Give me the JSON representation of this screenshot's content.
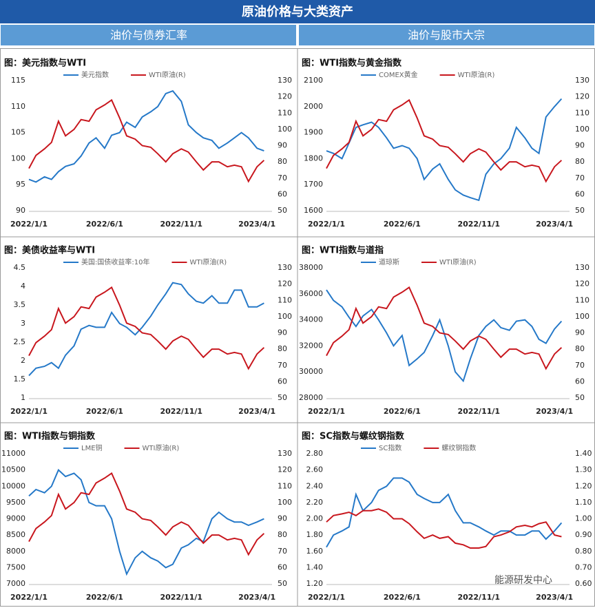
{
  "header": {
    "title": "原油价格与大类资产"
  },
  "sections": [
    "油价与债券汇率",
    "油价与股市大宗"
  ],
  "watermark": "能源研发中心",
  "chart_data": [
    {
      "type": "line",
      "title": "图：美元指数与WTI",
      "x": [
        "2022/1/1",
        "2022/1/15",
        "2022/2/1",
        "2022/2/15",
        "2022/3/1",
        "2022/3/15",
        "2022/4/1",
        "2022/4/15",
        "2022/5/1",
        "2022/5/15",
        "2022/6/1",
        "2022/6/15",
        "2022/7/1",
        "2022/7/15",
        "2022/8/1",
        "2022/8/15",
        "2022/9/1",
        "2022/9/15",
        "2022/10/1",
        "2022/10/15",
        "2022/11/1",
        "2022/11/15",
        "2022/12/1",
        "2022/12/15",
        "2023/1/1",
        "2023/1/15",
        "2023/2/1",
        "2023/2/15",
        "2023/3/1",
        "2023/3/15",
        "2023/4/1",
        "2023/4/15"
      ],
      "xlim": [
        "2022/1/1",
        "2023/5/1"
      ],
      "xticks": [
        "2022/1/1",
        "2022/6/1",
        "2022/11/1",
        "2023/4/1"
      ],
      "ylim": [
        90,
        115
      ],
      "yticks": [
        90,
        95,
        100,
        105,
        110,
        115
      ],
      "y2lim": [
        50,
        130
      ],
      "y2ticks": [
        50,
        60,
        70,
        80,
        90,
        100,
        110,
        120,
        130
      ],
      "series": [
        {
          "name": "美元指数",
          "color": "#2478c8",
          "values": [
            96,
            95.5,
            96.5,
            96,
            97.5,
            98.5,
            99,
            100.5,
            103,
            104,
            102,
            104.5,
            105,
            107,
            106,
            108,
            109,
            110,
            112.5,
            113,
            111,
            106.5,
            105,
            104,
            103.5,
            102,
            103,
            104,
            105,
            104,
            102,
            101.5
          ]
        },
        {
          "name": "WTI原油(R)",
          "color": "#c8161d",
          "axis": "y2",
          "values": [
            76,
            84,
            88,
            92,
            105,
            96,
            100,
            106,
            105,
            112,
            115,
            118,
            107,
            96,
            94,
            90,
            89,
            85,
            80,
            85,
            88,
            86,
            80,
            75,
            80,
            80,
            77,
            78,
            77,
            68,
            77,
            81
          ]
        }
      ]
    },
    {
      "type": "line",
      "title": "图：WTI指数与黄金指数",
      "x": [
        "2022/1/1",
        "2022/1/15",
        "2022/2/1",
        "2022/2/15",
        "2022/3/1",
        "2022/3/15",
        "2022/4/1",
        "2022/4/15",
        "2022/5/1",
        "2022/5/15",
        "2022/6/1",
        "2022/6/15",
        "2022/7/1",
        "2022/7/15",
        "2022/8/1",
        "2022/8/15",
        "2022/9/1",
        "2022/9/15",
        "2022/10/1",
        "2022/10/15",
        "2022/11/1",
        "2022/11/15",
        "2022/12/1",
        "2022/12/15",
        "2023/1/1",
        "2023/1/15",
        "2023/2/1",
        "2023/2/15",
        "2023/3/1",
        "2023/3/15",
        "2023/4/1",
        "2023/4/15"
      ],
      "xlim": [
        "2022/1/1",
        "2023/5/1"
      ],
      "xticks": [
        "2022/1/1",
        "2022/6/1",
        "2022/11/1",
        "2023/4/1"
      ],
      "ylim": [
        1600,
        2100
      ],
      "yticks": [
        1600,
        1700,
        1800,
        1900,
        2000,
        2100
      ],
      "y2lim": [
        50,
        130
      ],
      "y2ticks": [
        50,
        60,
        70,
        80,
        90,
        100,
        110,
        120,
        130
      ],
      "series": [
        {
          "name": "COMEX黄金",
          "color": "#2478c8",
          "values": [
            1830,
            1820,
            1800,
            1860,
            1920,
            1930,
            1940,
            1920,
            1880,
            1840,
            1850,
            1840,
            1800,
            1720,
            1760,
            1780,
            1720,
            1680,
            1660,
            1650,
            1640,
            1740,
            1780,
            1800,
            1840,
            1920,
            1880,
            1840,
            1820,
            1960,
            2000,
            2030
          ]
        },
        {
          "name": "WTI原油(R)",
          "color": "#c8161d",
          "axis": "y2",
          "values": [
            76,
            84,
            88,
            92,
            105,
            96,
            100,
            106,
            105,
            112,
            115,
            118,
            107,
            96,
            94,
            90,
            89,
            85,
            80,
            85,
            88,
            86,
            80,
            75,
            80,
            80,
            77,
            78,
            77,
            68,
            77,
            81
          ]
        }
      ]
    },
    {
      "type": "line",
      "title": "图：美债收益率与WTI",
      "x": [
        "2022/1/1",
        "2022/1/15",
        "2022/2/1",
        "2022/2/15",
        "2022/3/1",
        "2022/3/15",
        "2022/4/1",
        "2022/4/15",
        "2022/5/1",
        "2022/5/15",
        "2022/6/1",
        "2022/6/15",
        "2022/7/1",
        "2022/7/15",
        "2022/8/1",
        "2022/8/15",
        "2022/9/1",
        "2022/9/15",
        "2022/10/1",
        "2022/10/15",
        "2022/11/1",
        "2022/11/15",
        "2022/12/1",
        "2022/12/15",
        "2023/1/1",
        "2023/1/15",
        "2023/2/1",
        "2023/2/15",
        "2023/3/1",
        "2023/3/15",
        "2023/4/1",
        "2023/4/15"
      ],
      "xlim": [
        "2022/1/1",
        "2023/5/1"
      ],
      "xticks": [
        "2022/1/1",
        "2022/6/1",
        "2022/11/1",
        "2023/4/1"
      ],
      "ylim": [
        1,
        4.5
      ],
      "yticks": [
        1,
        1.5,
        2,
        2.5,
        3,
        3.5,
        4,
        4.5
      ],
      "y2lim": [
        50,
        130
      ],
      "y2ticks": [
        50,
        60,
        70,
        80,
        90,
        100,
        110,
        120,
        130
      ],
      "series": [
        {
          "name": "美国:国债收益率:10年",
          "color": "#2478c8",
          "values": [
            1.6,
            1.8,
            1.85,
            1.95,
            1.8,
            2.15,
            2.4,
            2.85,
            2.95,
            2.9,
            2.9,
            3.3,
            3.0,
            2.9,
            2.7,
            2.9,
            3.2,
            3.5,
            3.8,
            4.1,
            4.05,
            3.8,
            3.6,
            3.55,
            3.75,
            3.55,
            3.55,
            3.9,
            3.9,
            3.45,
            3.45,
            3.55
          ]
        },
        {
          "name": "WTI原油(R)",
          "color": "#c8161d",
          "axis": "y2",
          "values": [
            76,
            84,
            88,
            92,
            105,
            96,
            100,
            106,
            105,
            112,
            115,
            118,
            107,
            96,
            94,
            90,
            89,
            85,
            80,
            85,
            88,
            86,
            80,
            75,
            80,
            80,
            77,
            78,
            77,
            68,
            77,
            81
          ]
        }
      ]
    },
    {
      "type": "line",
      "title": "图：WTI指数与道指",
      "x": [
        "2022/1/1",
        "2022/1/15",
        "2022/2/1",
        "2022/2/15",
        "2022/3/1",
        "2022/3/15",
        "2022/4/1",
        "2022/4/15",
        "2022/5/1",
        "2022/5/15",
        "2022/6/1",
        "2022/6/15",
        "2022/7/1",
        "2022/7/15",
        "2022/8/1",
        "2022/8/15",
        "2022/9/1",
        "2022/9/15",
        "2022/10/1",
        "2022/10/15",
        "2022/11/1",
        "2022/11/15",
        "2022/12/1",
        "2022/12/15",
        "2023/1/1",
        "2023/1/15",
        "2023/2/1",
        "2023/2/15",
        "2023/3/1",
        "2023/3/15",
        "2023/4/1",
        "2023/4/15"
      ],
      "xlim": [
        "2022/1/1",
        "2023/5/1"
      ],
      "xticks": [
        "2022/1/1",
        "2022/6/1",
        "2022/11/1",
        "2023/4/1"
      ],
      "ylim": [
        28000,
        38000
      ],
      "yticks": [
        28000,
        30000,
        32000,
        34000,
        36000,
        38000
      ],
      "y2lim": [
        50,
        130
      ],
      "y2ticks": [
        50,
        60,
        70,
        80,
        90,
        100,
        110,
        120,
        130
      ],
      "series": [
        {
          "name": "道琼斯",
          "color": "#2478c8",
          "values": [
            36300,
            35500,
            35000,
            34200,
            33500,
            34300,
            34800,
            34000,
            33000,
            32000,
            32800,
            30500,
            31000,
            31500,
            32800,
            34000,
            32000,
            30000,
            29300,
            31000,
            32800,
            33500,
            34000,
            33400,
            33200,
            33900,
            34000,
            33500,
            32500,
            32200,
            33300,
            33900
          ]
        },
        {
          "name": "WTI原油(R)",
          "color": "#c8161d",
          "axis": "y2",
          "values": [
            76,
            84,
            88,
            92,
            105,
            96,
            100,
            106,
            105,
            112,
            115,
            118,
            107,
            96,
            94,
            90,
            89,
            85,
            80,
            85,
            88,
            86,
            80,
            75,
            80,
            80,
            77,
            78,
            77,
            68,
            77,
            81
          ]
        }
      ]
    },
    {
      "type": "line",
      "title": "图：WTI指数与铜指数",
      "x": [
        "2022/1/1",
        "2022/1/15",
        "2022/2/1",
        "2022/2/15",
        "2022/3/1",
        "2022/3/15",
        "2022/4/1",
        "2022/4/15",
        "2022/5/1",
        "2022/5/15",
        "2022/6/1",
        "2022/6/15",
        "2022/7/1",
        "2022/7/15",
        "2022/8/1",
        "2022/8/15",
        "2022/9/1",
        "2022/9/15",
        "2022/10/1",
        "2022/10/15",
        "2022/11/1",
        "2022/11/15",
        "2022/12/1",
        "2022/12/15",
        "2023/1/1",
        "2023/1/15",
        "2023/2/1",
        "2023/2/15",
        "2023/3/1",
        "2023/3/15",
        "2023/4/1",
        "2023/4/15"
      ],
      "xlim": [
        "2022/1/1",
        "2023/5/1"
      ],
      "xticks": [
        "2022/1/1",
        "2022/6/1",
        "2022/11/1",
        "2023/4/1"
      ],
      "ylim": [
        7000,
        11000
      ],
      "yticks": [
        7000,
        7500,
        8000,
        8500,
        9000,
        9500,
        10000,
        10500,
        11000
      ],
      "y2lim": [
        50,
        130
      ],
      "y2ticks": [
        50,
        60,
        70,
        80,
        90,
        100,
        110,
        120,
        130
      ],
      "series": [
        {
          "name": "LME铜",
          "color": "#2478c8",
          "values": [
            9700,
            9900,
            9800,
            10000,
            10500,
            10300,
            10400,
            10200,
            9500,
            9400,
            9400,
            9000,
            8000,
            7300,
            7800,
            8000,
            7800,
            7700,
            7500,
            7600,
            8100,
            8200,
            8400,
            8300,
            9000,
            9200,
            9000,
            8900,
            8900,
            8800,
            8900,
            9000
          ]
        },
        {
          "name": "WTI原油(R)",
          "color": "#c8161d",
          "axis": "y2",
          "values": [
            76,
            84,
            88,
            92,
            105,
            96,
            100,
            106,
            105,
            112,
            115,
            118,
            107,
            96,
            94,
            90,
            89,
            85,
            80,
            85,
            88,
            86,
            80,
            75,
            80,
            80,
            77,
            78,
            77,
            68,
            77,
            81
          ]
        }
      ]
    },
    {
      "type": "line",
      "title": "图：SC指数与螺纹钢指数",
      "x": [
        "2022/1/1",
        "2022/1/15",
        "2022/2/1",
        "2022/2/15",
        "2022/3/1",
        "2022/3/15",
        "2022/4/1",
        "2022/4/15",
        "2022/5/1",
        "2022/5/15",
        "2022/6/1",
        "2022/6/15",
        "2022/7/1",
        "2022/7/15",
        "2022/8/1",
        "2022/8/15",
        "2022/9/1",
        "2022/9/15",
        "2022/10/1",
        "2022/10/15",
        "2022/11/1",
        "2022/11/15",
        "2022/12/1",
        "2022/12/15",
        "2023/1/1",
        "2023/1/15",
        "2023/2/1",
        "2023/2/15",
        "2023/3/1",
        "2023/3/15",
        "2023/4/1",
        "2023/4/15"
      ],
      "xlim": [
        "2022/1/1",
        "2023/5/1"
      ],
      "xticks": [
        "2022/1/1",
        "2022/6/1",
        "2022/11/1",
        "2023/4/1"
      ],
      "ylim": [
        1.2,
        2.8
      ],
      "yticks": [
        {
          "value": 1.2,
          "label": "1.20"
        },
        {
          "value": 1.4,
          "label": "1.40"
        },
        {
          "value": 1.6,
          "label": "1.60"
        },
        {
          "value": 1.8,
          "label": "1.80"
        },
        {
          "value": 2,
          "label": "2.00"
        },
        {
          "value": 2.2,
          "label": "2.20"
        },
        {
          "value": 2.4,
          "label": "2.40"
        },
        {
          "value": 2.6,
          "label": "2.60"
        },
        {
          "value": 2.8,
          "label": "2.80"
        }
      ],
      "y2lim": [
        0.6,
        1.4
      ],
      "y2ticks": [
        {
          "value": 0.6,
          "label": "0.60"
        },
        {
          "value": 0.7,
          "label": "0.70"
        },
        {
          "value": 0.8,
          "label": "0.80"
        },
        {
          "value": 0.9,
          "label": "0.90"
        },
        {
          "value": 1,
          "label": "1.00"
        },
        {
          "value": 1.1,
          "label": "1.10"
        },
        {
          "value": 1.2,
          "label": "1.20"
        },
        {
          "value": 1.3,
          "label": "1.30"
        },
        {
          "value": 1.4,
          "label": "1.40"
        }
      ],
      "series": [
        {
          "name": "SC指数",
          "color": "#2478c8",
          "values": [
            1.65,
            1.8,
            1.85,
            1.9,
            2.3,
            2.1,
            2.2,
            2.35,
            2.4,
            2.5,
            2.5,
            2.45,
            2.3,
            2.25,
            2.2,
            2.2,
            2.3,
            2.1,
            1.95,
            1.95,
            1.9,
            1.85,
            1.8,
            1.85,
            1.85,
            1.8,
            1.8,
            1.85,
            1.85,
            1.75,
            1.85,
            1.95
          ]
        },
        {
          "name": "螺纹钢指数",
          "color": "#c8161d",
          "axis": "y2",
          "values": [
            0.98,
            1.02,
            1.03,
            1.04,
            1.02,
            1.05,
            1.05,
            1.06,
            1.04,
            1.0,
            1.0,
            0.97,
            0.92,
            0.88,
            0.9,
            0.88,
            0.89,
            0.85,
            0.84,
            0.82,
            0.82,
            0.83,
            0.89,
            0.9,
            0.92,
            0.95,
            0.96,
            0.95,
            0.97,
            0.98,
            0.9,
            0.89
          ]
        }
      ]
    }
  ]
}
